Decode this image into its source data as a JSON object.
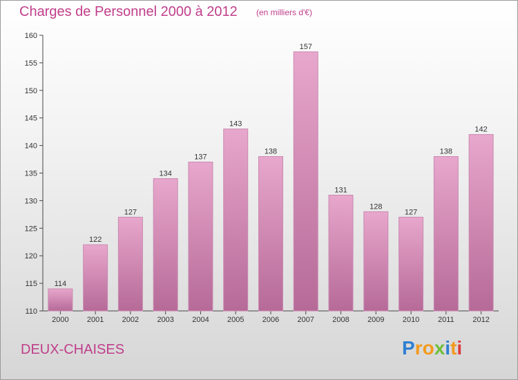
{
  "header": {
    "title": "Charges de Personnel 2000 à 2012",
    "subtitle": "(en milliers d'€)"
  },
  "footer": {
    "city": "DEUX-CHAISES",
    "logo": "Proxiti"
  },
  "colors": {
    "bar_top": "#e8a7cc",
    "bar_bottom": "#b66a98",
    "accent": "#c03e8a"
  },
  "chart_data": {
    "type": "bar",
    "categories": [
      "2000",
      "2001",
      "2002",
      "2003",
      "2004",
      "2005",
      "2006",
      "2007",
      "2008",
      "2009",
      "2010",
      "2011",
      "2012"
    ],
    "values": [
      114,
      122,
      127,
      134,
      137,
      143,
      138,
      157,
      131,
      128,
      127,
      138,
      142
    ],
    "title": "Charges de Personnel 2000 à 2012",
    "subtitle": "(en milliers d'€)",
    "xlabel": "",
    "ylabel": "",
    "ylim": [
      110,
      160
    ],
    "yticks": [
      110,
      115,
      120,
      125,
      130,
      135,
      140,
      145,
      150,
      155,
      160
    ],
    "grid": false,
    "data_labels": true
  }
}
